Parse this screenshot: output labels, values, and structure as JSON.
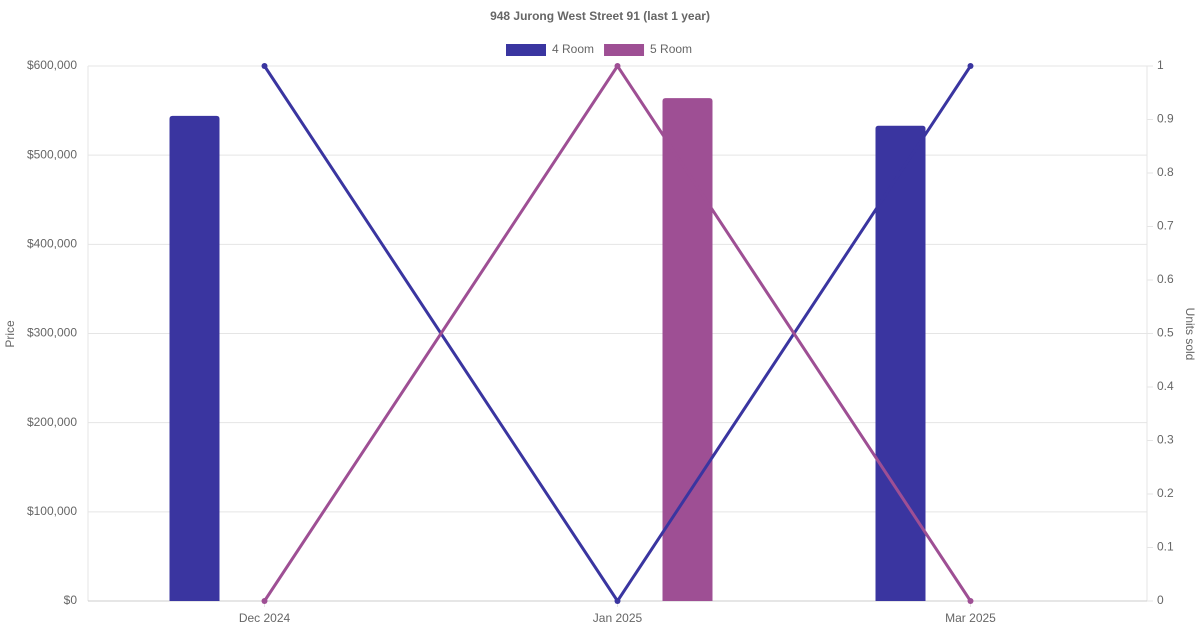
{
  "chart_data": {
    "type": "bar-line",
    "title": "948 Jurong West Street 91 (last 1 year)",
    "y_label": "Price",
    "y2_label": "Units sold",
    "categories": [
      "Dec 2024",
      "Jan 2025",
      "Mar 2025"
    ],
    "series": [
      {
        "name": "4 Room",
        "color": "#3a35a0",
        "values": [
          544000,
          null,
          533000
        ],
        "units_sold": [
          1,
          0,
          1
        ]
      },
      {
        "name": "5 Room",
        "color": "#9e4f94",
        "values": [
          null,
          564000,
          null
        ],
        "units_sold": [
          0,
          1,
          0
        ]
      }
    ],
    "ylim": [
      0,
      600000
    ],
    "yticks": [
      {
        "value": 0,
        "label": "$0"
      },
      {
        "value": 100000,
        "label": "$100,000"
      },
      {
        "value": 200000,
        "label": "$200,000"
      },
      {
        "value": 300000,
        "label": "$300,000"
      },
      {
        "value": 400000,
        "label": "$400,000"
      },
      {
        "value": 500000,
        "label": "$500,000"
      },
      {
        "value": 600000,
        "label": "$600,000"
      }
    ],
    "y2lim": [
      0,
      1
    ],
    "y2ticks": [
      0,
      0.1,
      0.2,
      0.3,
      0.4,
      0.5,
      0.6,
      0.7,
      0.8,
      0.9,
      1
    ],
    "grid": true
  }
}
